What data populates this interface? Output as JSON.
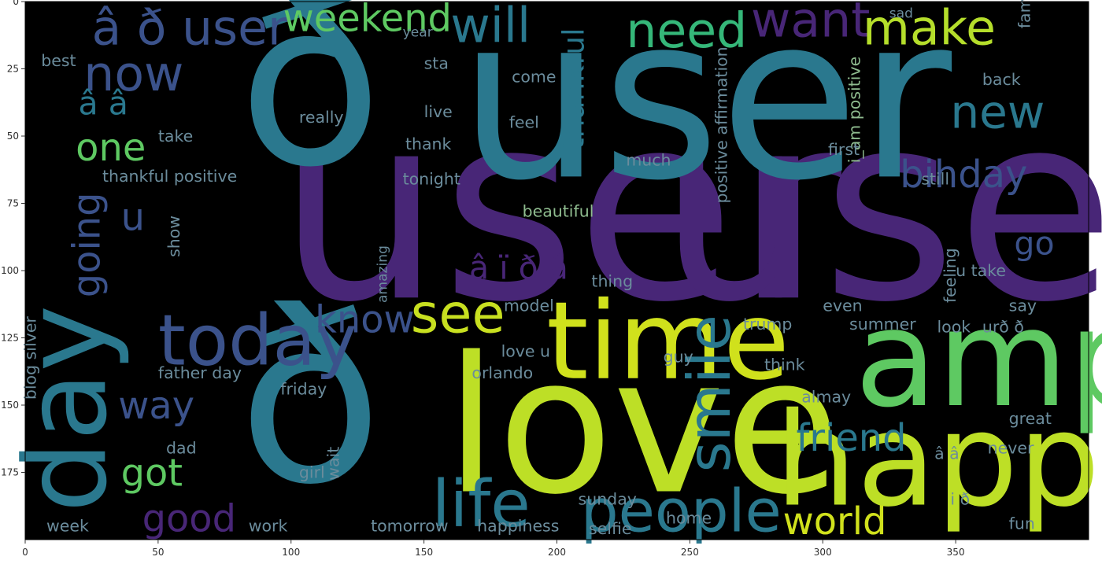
{
  "chart_data": {
    "type": "wordcloud",
    "background": "#000000",
    "palette": [
      "#440154",
      "#3b528b",
      "#21918c",
      "#5ec962",
      "#fde725"
    ],
    "grid": false,
    "xlim": [
      0,
      400
    ],
    "ylim": [
      200,
      0
    ],
    "xticks": [
      0,
      50,
      100,
      150,
      200,
      250,
      300,
      350
    ],
    "yticks": [
      0,
      25,
      50,
      75,
      100,
      125,
      150,
      175
    ],
    "words": [
      {
        "text": "user",
        "x": 95,
        "y": 110,
        "size": 96,
        "color": "#482677"
      },
      {
        "text": "user",
        "x": 238,
        "y": 110,
        "size": 96,
        "color": "#482677"
      },
      {
        "text": "user",
        "x": 163,
        "y": 65,
        "size": 84,
        "color": "#2a788e"
      },
      {
        "text": "ð",
        "x": 80,
        "y": 60,
        "size": 88,
        "color": "#2a788e"
      },
      {
        "text": "ð",
        "x": 80,
        "y": 178,
        "size": 88,
        "color": "#2a788e"
      },
      {
        "text": "love",
        "x": 158,
        "y": 182,
        "size": 70,
        "color": "#bddf26"
      },
      {
        "text": "amp",
        "x": 312,
        "y": 150,
        "size": 50,
        "color": "#5ec962"
      },
      {
        "text": "happy",
        "x": 282,
        "y": 187,
        "size": 48,
        "color": "#bddf26"
      },
      {
        "text": "time",
        "x": 196,
        "y": 140,
        "size": 40,
        "color": "#d0e11c"
      },
      {
        "text": "day",
        "x": 30,
        "y": 190,
        "size": 42,
        "color": "#2a788e",
        "rotate": -90
      },
      {
        "text": "today",
        "x": 50,
        "y": 135,
        "size": 26,
        "color": "#3b528b"
      },
      {
        "text": "life",
        "x": 153,
        "y": 195,
        "size": 24,
        "color": "#2a788e"
      },
      {
        "text": "people",
        "x": 209,
        "y": 197,
        "size": 22,
        "color": "#2a788e"
      },
      {
        "text": "smile",
        "x": 265,
        "y": 175,
        "size": 22,
        "color": "#2a788e",
        "rotate": -90
      },
      {
        "text": "see",
        "x": 145,
        "y": 123,
        "size": 20,
        "color": "#c8e020"
      },
      {
        "text": "now",
        "x": 22,
        "y": 33,
        "size": 18,
        "color": "#3b528b"
      },
      {
        "text": "will",
        "x": 160,
        "y": 15,
        "size": 18,
        "color": "#2a788e"
      },
      {
        "text": "need",
        "x": 226,
        "y": 17,
        "size": 18,
        "color": "#35b779"
      },
      {
        "text": "want",
        "x": 273,
        "y": 13,
        "size": 18,
        "color": "#482677"
      },
      {
        "text": "make",
        "x": 315,
        "y": 16,
        "size": 18,
        "color": "#b5de2b"
      },
      {
        "text": "â ð user",
        "x": 25,
        "y": 16,
        "size": 18,
        "color": "#3b528b"
      },
      {
        "text": "weekend",
        "x": 97,
        "y": 11,
        "size": 14,
        "color": "#5ec962"
      },
      {
        "text": "new",
        "x": 348,
        "y": 47,
        "size": 17,
        "color": "#2a788e"
      },
      {
        "text": "bihday",
        "x": 329,
        "y": 69,
        "size": 14,
        "color": "#3b528b"
      },
      {
        "text": "one",
        "x": 19,
        "y": 59,
        "size": 14,
        "color": "#5ec962"
      },
      {
        "text": "â â",
        "x": 20,
        "y": 42,
        "size": 12,
        "color": "#2a788e"
      },
      {
        "text": "u",
        "x": 36,
        "y": 85,
        "size": 14,
        "color": "#3b528b"
      },
      {
        "text": "going",
        "x": 28,
        "y": 110,
        "size": 14,
        "color": "#3b528b",
        "rotate": -90
      },
      {
        "text": "know",
        "x": 109,
        "y": 123,
        "size": 14,
        "color": "#3b528b"
      },
      {
        "text": "way",
        "x": 35,
        "y": 155,
        "size": 14,
        "color": "#3b528b"
      },
      {
        "text": "got",
        "x": 36,
        "y": 180,
        "size": 14,
        "color": "#5ec962"
      },
      {
        "text": "good",
        "x": 44,
        "y": 197,
        "size": 14,
        "color": "#482677"
      },
      {
        "text": "friend",
        "x": 290,
        "y": 167,
        "size": 14,
        "color": "#2a788e"
      },
      {
        "text": "world",
        "x": 285,
        "y": 198,
        "size": 14,
        "color": "#d0e11c"
      },
      {
        "text": "go",
        "x": 372,
        "y": 94,
        "size": 12,
        "color": "#3b528b"
      },
      {
        "text": "â ï ð â",
        "x": 167,
        "y": 103,
        "size": 12,
        "color": "#482677"
      },
      {
        "text": "thankful",
        "x": 210,
        "y": 55,
        "size": 11,
        "color": "#2a788e",
        "rotate": -90
      },
      {
        "text": "thankful positive",
        "x": 29,
        "y": 67,
        "size": 6,
        "color": "#6b8c9c"
      },
      {
        "text": "positive affirmation",
        "x": 264,
        "y": 75,
        "size": 6,
        "color": "#6b8c9c",
        "rotate": -90
      },
      {
        "text": "father day",
        "x": 50,
        "y": 140,
        "size": 6,
        "color": "#6b8c9c"
      },
      {
        "text": "blog silver",
        "x": 4,
        "y": 148,
        "size": 6,
        "color": "#6b8c9c",
        "rotate": -90
      },
      {
        "text": "orlando",
        "x": 168,
        "y": 140,
        "size": 6,
        "color": "#6b8c9c"
      },
      {
        "text": "beautiful",
        "x": 187,
        "y": 80,
        "size": 6,
        "color": "#8fbc8f"
      },
      {
        "text": "i_am positive",
        "x": 314,
        "y": 60,
        "size": 6,
        "color": "#8fbc8f",
        "rotate": -90
      },
      {
        "text": "really",
        "x": 103,
        "y": 45,
        "size": 6,
        "color": "#6b8c9c"
      },
      {
        "text": "live",
        "x": 150,
        "y": 43,
        "size": 6,
        "color": "#6b8c9c"
      },
      {
        "text": "feel",
        "x": 182,
        "y": 47,
        "size": 6,
        "color": "#6b8c9c"
      },
      {
        "text": "thank",
        "x": 143,
        "y": 55,
        "size": 6,
        "color": "#6b8c9c"
      },
      {
        "text": "take",
        "x": 50,
        "y": 52,
        "size": 6,
        "color": "#6b8c9c"
      },
      {
        "text": "tonight",
        "x": 142,
        "y": 68,
        "size": 6,
        "color": "#6b8c9c"
      },
      {
        "text": "much",
        "x": 226,
        "y": 61,
        "size": 6,
        "color": "#6b8c9c"
      },
      {
        "text": "first",
        "x": 302,
        "y": 57,
        "size": 6,
        "color": "#6b8c9c"
      },
      {
        "text": "still",
        "x": 337,
        "y": 68,
        "size": 6,
        "color": "#6b8c9c"
      },
      {
        "text": "back",
        "x": 360,
        "y": 31,
        "size": 6,
        "color": "#6b8c9c"
      },
      {
        "text": "come",
        "x": 183,
        "y": 30,
        "size": 6,
        "color": "#6b8c9c"
      },
      {
        "text": "sta",
        "x": 150,
        "y": 25,
        "size": 6,
        "color": "#6b8c9c"
      },
      {
        "text": "year",
        "x": 142,
        "y": 13,
        "size": 5,
        "color": "#6b8c9c"
      },
      {
        "text": "best",
        "x": 6,
        "y": 24,
        "size": 6,
        "color": "#6b8c9c"
      },
      {
        "text": "sad",
        "x": 325,
        "y": 6,
        "size": 5,
        "color": "#6b8c9c"
      },
      {
        "text": "family",
        "x": 378,
        "y": 10,
        "size": 6,
        "color": "#6b8c9c",
        "rotate": -90
      },
      {
        "text": "thing",
        "x": 213,
        "y": 106,
        "size": 6,
        "color": "#6b8c9c"
      },
      {
        "text": "model",
        "x": 180,
        "y": 115,
        "size": 6,
        "color": "#6b8c9c"
      },
      {
        "text": "even",
        "x": 300,
        "y": 115,
        "size": 6,
        "color": "#6b8c9c"
      },
      {
        "text": "trump",
        "x": 270,
        "y": 122,
        "size": 6,
        "color": "#6b8c9c"
      },
      {
        "text": "summer",
        "x": 310,
        "y": 122,
        "size": 6,
        "color": "#6b8c9c"
      },
      {
        "text": "look",
        "x": 343,
        "y": 123,
        "size": 6,
        "color": "#6b8c9c"
      },
      {
        "text": "urð ð",
        "x": 360,
        "y": 123,
        "size": 6,
        "color": "#6b8c9c"
      },
      {
        "text": "say",
        "x": 370,
        "y": 115,
        "size": 6,
        "color": "#6b8c9c"
      },
      {
        "text": "feeling",
        "x": 350,
        "y": 112,
        "size": 6,
        "color": "#6b8c9c",
        "rotate": -90
      },
      {
        "text": "u take",
        "x": 350,
        "y": 102,
        "size": 6,
        "color": "#6b8c9c"
      },
      {
        "text": "love u",
        "x": 179,
        "y": 132,
        "size": 6,
        "color": "#6b8c9c"
      },
      {
        "text": "guy",
        "x": 240,
        "y": 134,
        "size": 6,
        "color": "#6b8c9c"
      },
      {
        "text": "think",
        "x": 278,
        "y": 137,
        "size": 6,
        "color": "#6b8c9c"
      },
      {
        "text": "friday",
        "x": 96,
        "y": 146,
        "size": 6,
        "color": "#6b8c9c"
      },
      {
        "text": "almay",
        "x": 292,
        "y": 149,
        "size": 6,
        "color": "#6b8c9c"
      },
      {
        "text": "great",
        "x": 370,
        "y": 157,
        "size": 6,
        "color": "#6b8c9c"
      },
      {
        "text": "â â",
        "x": 342,
        "y": 170,
        "size": 6,
        "color": "#6b8c9c"
      },
      {
        "text": "never",
        "x": 362,
        "y": 168,
        "size": 6,
        "color": "#6b8c9c"
      },
      {
        "text": "dad",
        "x": 53,
        "y": 168,
        "size": 6,
        "color": "#6b8c9c"
      },
      {
        "text": "girl",
        "x": 103,
        "y": 177,
        "size": 6,
        "color": "#6b8c9c"
      },
      {
        "text": "wait",
        "x": 118,
        "y": 178,
        "size": 6,
        "color": "#6b8c9c",
        "rotate": -90
      },
      {
        "text": "sunday",
        "x": 208,
        "y": 187,
        "size": 6,
        "color": "#6b8c9c"
      },
      {
        "text": "i ð",
        "x": 348,
        "y": 187,
        "size": 6,
        "color": "#6b8c9c"
      },
      {
        "text": "fun",
        "x": 370,
        "y": 196,
        "size": 6,
        "color": "#6b8c9c"
      },
      {
        "text": "week",
        "x": 8,
        "y": 197,
        "size": 6,
        "color": "#6b8c9c"
      },
      {
        "text": "work",
        "x": 84,
        "y": 197,
        "size": 6,
        "color": "#6b8c9c"
      },
      {
        "text": "tomorrow",
        "x": 130,
        "y": 197,
        "size": 6,
        "color": "#6b8c9c"
      },
      {
        "text": "happiness",
        "x": 170,
        "y": 197,
        "size": 6,
        "color": "#6b8c9c"
      },
      {
        "text": "selfie",
        "x": 212,
        "y": 198,
        "size": 6,
        "color": "#6b8c9c"
      },
      {
        "text": "home",
        "x": 241,
        "y": 194,
        "size": 6,
        "color": "#6b8c9c"
      },
      {
        "text": "show",
        "x": 58,
        "y": 95,
        "size": 6,
        "color": "#6b8c9c",
        "rotate": -90
      },
      {
        "text": "amazing",
        "x": 136,
        "y": 112,
        "size": 5,
        "color": "#6b8c9c",
        "rotate": -90
      }
    ]
  }
}
